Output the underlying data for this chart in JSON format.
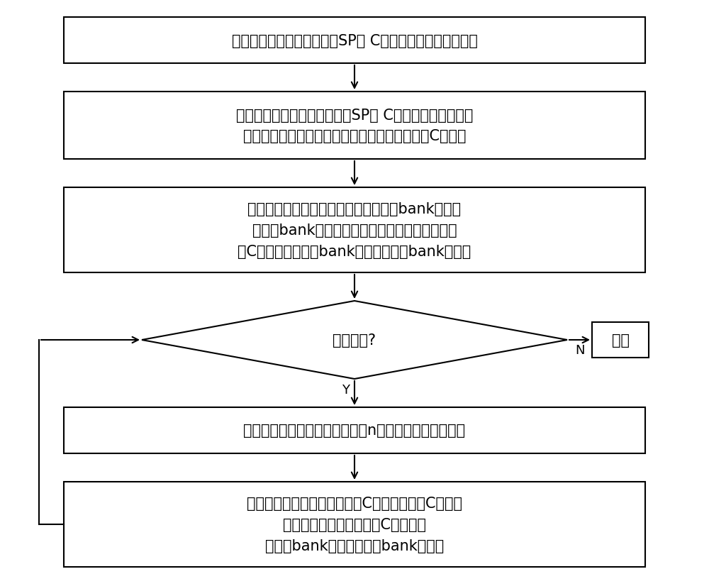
{
  "bg_color": "#ffffff",
  "line_color": "#000000",
  "text_color": "#000000",
  "box1_text": "将片外存储中待写入单端口SP的 C缓存的数据分为数据分块",
  "box2_text": "针对片外存储中待写入单端口SP的 C缓存的数据第一行，\n将第一行的首地址对应的第一个数据分块映射至C缓存中",
  "box3_text": "根据第一行的第一个数据分块的存储体bank偏移、\n存储体bank内偏移为确定该行后续各列数据分块\n在C缓存中的存储体bank偏移、存储体bank内偏移",
  "diamond_text": "处理完毕?",
  "end_text": "结束",
  "box4_text": "将上一行的首地址加上数据列数n，得到当前行的首地址",
  "box5_text": "将当前行各个数据分块映射至C缓存中，得到C缓存中\n当前行的各列数据分块在C缓存中的\n存储体bank偏移、存储体bank内偏移",
  "label_y": "Y",
  "label_n": "N",
  "fontsize": 15,
  "fontsize_label": 13
}
